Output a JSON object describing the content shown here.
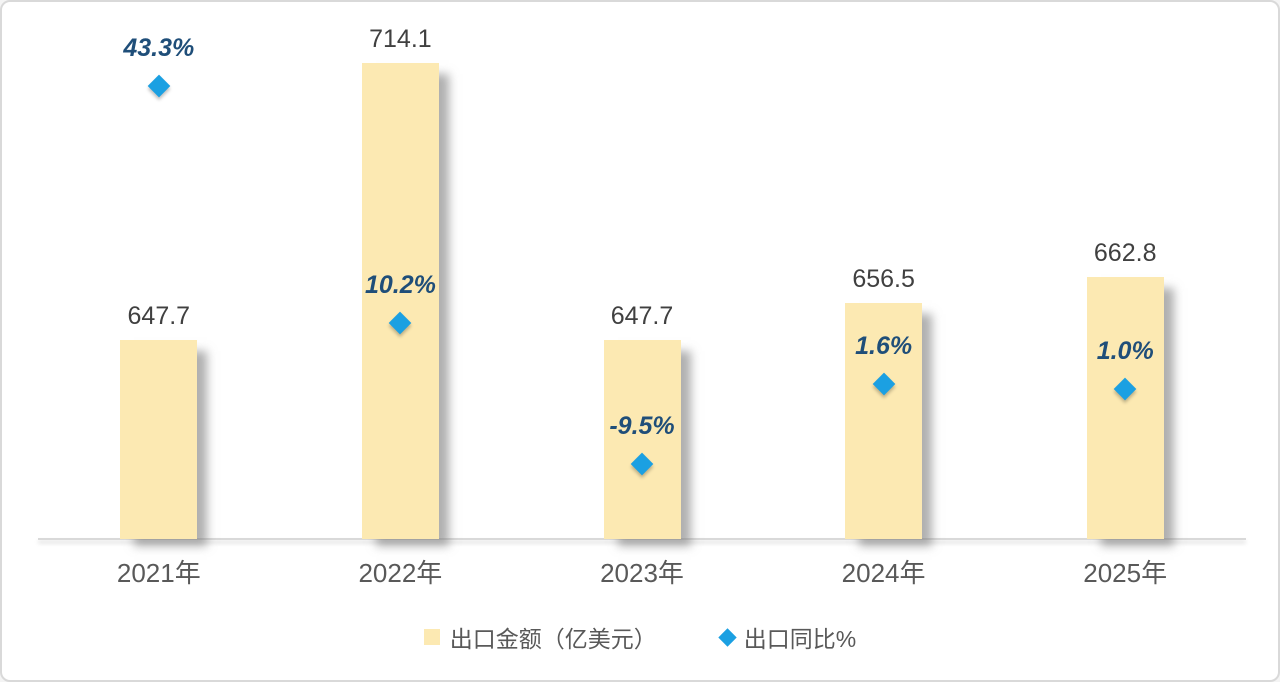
{
  "chart_data": {
    "type": "bar",
    "subtype": "combo-bar-with-diamond-scatter",
    "title": "",
    "categories": [
      "2021年",
      "2022年",
      "2023年",
      "2024年",
      "2025年"
    ],
    "series": [
      {
        "name": "出口金额（亿美元）",
        "type": "bar",
        "values": [
          647.7,
          714.1,
          647.7,
          656.5,
          662.8
        ],
        "data_labels": [
          "647.7",
          "714.1",
          "647.7",
          "656.5",
          "662.8"
        ],
        "axis": "primary",
        "ylim": [
          600,
          720
        ]
      },
      {
        "name": "出口同比%",
        "type": "scatter",
        "marker": "diamond",
        "values": [
          43.3,
          10.2,
          -9.5,
          1.6,
          1.0
        ],
        "data_labels": [
          "43.3%",
          "10.2%",
          "-9.5%",
          "1.6%",
          "1.0%"
        ],
        "axis": "secondary",
        "ylim": [
          -20,
          50
        ]
      }
    ],
    "legend_position": "bottom",
    "grid": false
  },
  "legend": {
    "items": [
      {
        "label": "出口金额（亿美元）",
        "marker": "square"
      },
      {
        "label": "出口同比%",
        "marker": "diamond"
      }
    ]
  },
  "colors": {
    "background": "#FFFFFF",
    "frame_border": "#D9D9D9",
    "bar_fill": "#FCE9B2",
    "diamond_fill": "#1BA0E2",
    "bar_value_label": "#404040",
    "pct_value_label": "#1F4E79",
    "x_axis_label": "#595959",
    "legend_text": "#595959",
    "axis_line": "#D9D9D9"
  }
}
